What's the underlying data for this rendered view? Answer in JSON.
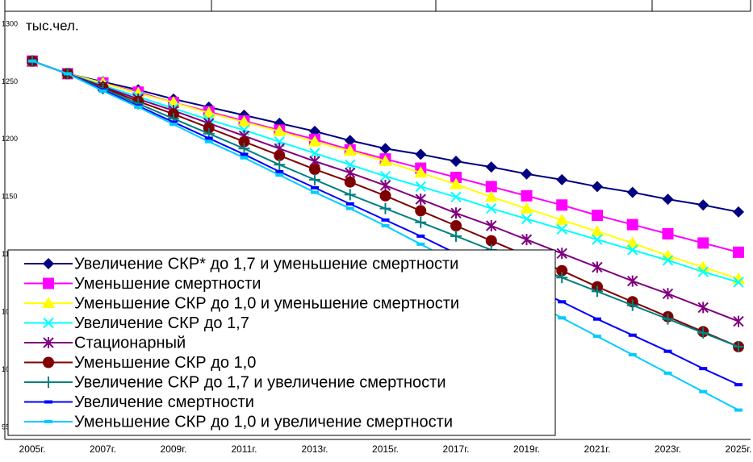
{
  "chart_data": {
    "type": "line",
    "title": "тыс.чел.",
    "categories": [
      "2005г.",
      null,
      "2007г.",
      null,
      "2009г.",
      null,
      "2011г.",
      null,
      "2013г.",
      null,
      "2015г.",
      null,
      "2017г.",
      null,
      "2019г.",
      null,
      "2021г.",
      null,
      "2023г.",
      null,
      "2025г."
    ],
    "ylim": [
      950,
      1300
    ],
    "yticks": [
      950,
      1000,
      1050,
      1100,
      1150,
      1200,
      1250,
      1300
    ],
    "series": [
      {
        "name": "Увеличение СКР* до 1,7 и уменьшение смертности",
        "color": "#000080",
        "marker": "diamond",
        "values": [
          1268,
          1257,
          1250,
          1243,
          1235,
          1228,
          1221,
          1214,
          1207,
          1199,
          1192,
          1187,
          1181,
          1176,
          1170,
          1165,
          1159,
          1154,
          1148,
          1143,
          1137
        ]
      },
      {
        "name": "Уменьшение смертности",
        "color": "#ff00ff",
        "marker": "square",
        "values": [
          1268,
          1257,
          1249,
          1241,
          1232,
          1224,
          1216,
          1208,
          1200,
          1191,
          1183,
          1175,
          1167,
          1159,
          1151,
          1143,
          1134,
          1126,
          1118,
          1110,
          1102
        ]
      },
      {
        "name": "Уменьшение СКР до 1,0 и уменьшение смертности",
        "color": "#ffff00",
        "marker": "triangle",
        "values": [
          1268,
          1257,
          1249,
          1240,
          1232,
          1223,
          1215,
          1207,
          1198,
          1190,
          1181,
          1171,
          1161,
          1150,
          1140,
          1130,
          1120,
          1110,
          1099,
          1089,
          1079
        ]
      },
      {
        "name": "Увеличение СКР до 1,7",
        "color": "#00ffff",
        "marker": "x",
        "values": [
          1268,
          1257,
          1247,
          1237,
          1227,
          1217,
          1208,
          1198,
          1188,
          1178,
          1168,
          1159,
          1150,
          1140,
          1131,
          1122,
          1113,
          1104,
          1095,
          1085,
          1076
        ]
      },
      {
        "name": "Стационарный",
        "color": "#800080",
        "marker": "asterisk",
        "values": [
          1268,
          1257,
          1246,
          1235,
          1225,
          1214,
          1203,
          1192,
          1181,
          1171,
          1160,
          1148,
          1136,
          1125,
          1113,
          1101,
          1089,
          1077,
          1066,
          1054,
          1042
        ]
      },
      {
        "name": "Уменьшение СКР до 1,0",
        "color": "#800000",
        "marker": "circle",
        "values": [
          1268,
          1257,
          1245,
          1233,
          1222,
          1210,
          1198,
          1186,
          1174,
          1163,
          1151,
          1138,
          1125,
          1112,
          1099,
          1086,
          1072,
          1059,
          1046,
          1033,
          1020
        ]
      },
      {
        "name": "Увеличение СКР до 1,7 и увеличение смертности",
        "color": "#008080",
        "marker": "plus",
        "values": [
          1268,
          1257,
          1244,
          1231,
          1218,
          1205,
          1192,
          1178,
          1165,
          1152,
          1140,
          1128,
          1116,
          1104,
          1092,
          1080,
          1068,
          1056,
          1044,
          1032,
          1020
        ]
      },
      {
        "name": "Увеличение смертности",
        "color": "#0000ff",
        "marker": "dash",
        "values": [
          1268,
          1257,
          1243,
          1229,
          1215,
          1201,
          1187,
          1172,
          1158,
          1144,
          1130,
          1116,
          1101,
          1087,
          1073,
          1059,
          1044,
          1030,
          1016,
          1001,
          987
        ]
      },
      {
        "name": "Уменьшение СКР до 1,0 и увеличение смертности",
        "color": "#00ccff",
        "marker": "dash",
        "values": [
          1268,
          1257,
          1242,
          1228,
          1213,
          1198,
          1184,
          1169,
          1154,
          1140,
          1125,
          1109,
          1093,
          1077,
          1061,
          1045,
          1029,
          1013,
          997,
          981,
          965
        ]
      }
    ]
  }
}
